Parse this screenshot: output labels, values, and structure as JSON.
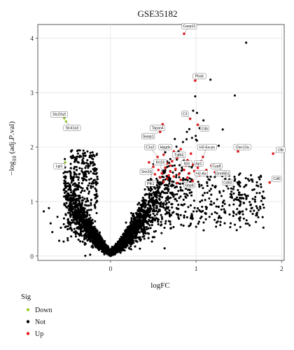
{
  "chart_data": {
    "type": "scatter",
    "title": "GSE35182",
    "xlabel": "logFC",
    "ylabel": "−log10 (adj.P.val)",
    "ylabel_parts": {
      "prefix": "−log",
      "sub": "10",
      "suffix": " (adj.",
      "italic": "P",
      "suffix2": ".val)"
    },
    "xlim": [
      -0.85,
      2.03
    ],
    "ylim": [
      -0.08,
      4.25
    ],
    "xticks": [
      0,
      1,
      2
    ],
    "yticks": [
      0,
      1,
      2,
      3,
      4
    ],
    "grid": true,
    "legend": {
      "title": "Sig",
      "position": "bottom-left",
      "entries": [
        {
          "name": "Down",
          "color": "#9acd32"
        },
        {
          "name": "Not",
          "color": "#000000"
        },
        {
          "name": "Up",
          "color": "#e41a1c"
        }
      ]
    },
    "series": [
      {
        "name": "Down",
        "color": "#9acd32",
        "points": [
          [
            -0.54,
            2.53
          ],
          [
            -0.52,
            2.47
          ],
          [
            -0.53,
            1.72
          ],
          [
            -0.56,
            1.62
          ]
        ]
      },
      {
        "name": "Up",
        "color": "#e41a1c",
        "points": [
          [
            0.86,
            4.08
          ],
          [
            0.99,
            3.22
          ],
          [
            0.93,
            2.52
          ],
          [
            1.02,
            2.41
          ],
          [
            0.61,
            2.42
          ],
          [
            0.58,
            2.28
          ],
          [
            1.49,
            1.92
          ],
          [
            1.9,
            1.88
          ],
          [
            1.86,
            1.35
          ],
          [
            0.55,
            1.82
          ],
          [
            0.62,
            1.86
          ],
          [
            0.66,
            1.7
          ],
          [
            0.72,
            1.74
          ],
          [
            0.78,
            1.8
          ],
          [
            0.84,
            1.86
          ],
          [
            0.9,
            1.76
          ],
          [
            0.96,
            1.68
          ],
          [
            1.02,
            1.62
          ],
          [
            1.06,
            1.74
          ],
          [
            0.45,
            1.72
          ],
          [
            0.5,
            1.64
          ],
          [
            0.56,
            1.58
          ],
          [
            0.6,
            1.52
          ],
          [
            0.64,
            1.62
          ],
          [
            0.7,
            1.55
          ],
          [
            0.76,
            1.6
          ],
          [
            0.8,
            1.5
          ],
          [
            0.86,
            1.58
          ],
          [
            0.92,
            1.52
          ],
          [
            0.98,
            1.56
          ],
          [
            0.52,
            1.5
          ],
          [
            0.58,
            1.44
          ],
          [
            0.66,
            1.42
          ],
          [
            0.74,
            1.46
          ],
          [
            0.82,
            1.4
          ],
          [
            0.9,
            1.44
          ],
          [
            0.96,
            1.38
          ],
          [
            1.04,
            1.48
          ],
          [
            0.48,
            1.56
          ],
          [
            0.7,
            1.66
          ],
          [
            0.88,
            1.66
          ],
          [
            1.0,
            1.72
          ],
          [
            0.62,
            1.36
          ],
          [
            0.78,
            1.34
          ],
          [
            1.12,
            1.58
          ],
          [
            1.18,
            1.66
          ],
          [
            1.22,
            1.54
          ],
          [
            1.28,
            1.62
          ],
          [
            1.34,
            1.5
          ],
          [
            0.74,
            1.92
          ],
          [
            0.82,
            1.96
          ],
          [
            0.94,
            1.88
          ],
          [
            1.08,
            1.82
          ],
          [
            0.68,
            1.48
          ]
        ]
      }
    ],
    "annotations": [
      {
        "label": "Casp12",
        "x": 0.86,
        "y": 4.08,
        "lx": 0.92,
        "ly": 4.22
      },
      {
        "label": "Plxdc",
        "x": 0.99,
        "y": 3.22,
        "lx": 1.04,
        "ly": 3.3
      },
      {
        "label": "Slc22a3",
        "x": -0.54,
        "y": 2.53,
        "lx": -0.6,
        "ly": 2.6
      },
      {
        "label": "Slc41a3",
        "x": -0.52,
        "y": 2.47,
        "lx": -0.45,
        "ly": 2.35
      },
      {
        "label": "C3",
        "x": 0.93,
        "y": 2.52,
        "lx": 0.87,
        "ly": 2.61
      },
      {
        "label": "C4b",
        "x": 1.02,
        "y": 2.41,
        "lx": 1.1,
        "ly": 2.34
      },
      {
        "label": "Tapan4",
        "x": 0.61,
        "y": 2.42,
        "lx": 0.55,
        "ly": 2.35
      },
      {
        "label": "Swap1",
        "x": 0.58,
        "y": 2.28,
        "lx": 0.44,
        "ly": 2.2
      },
      {
        "label": "C1s2",
        "x": 0.55,
        "y": 1.82,
        "lx": 0.46,
        "ly": 2.0
      },
      {
        "label": "Hpgds",
        "x": 0.62,
        "y": 1.86,
        "lx": 0.64,
        "ly": 2.0
      },
      {
        "label": "H2-Ea-ps",
        "x": 1.06,
        "y": 1.74,
        "lx": 1.13,
        "ly": 2.0
      },
      {
        "label": "Clec12a",
        "x": 1.49,
        "y": 1.92,
        "lx": 1.54,
        "ly": 2.0
      },
      {
        "label": "Cfb",
        "x": 1.9,
        "y": 1.88,
        "lx": 1.99,
        "ly": 1.95
      },
      {
        "label": "Tgfb2",
        "x": 0.72,
        "y": 1.74,
        "lx": 0.8,
        "ly": 1.86
      },
      {
        "label": "Krt18",
        "x": 0.6,
        "y": 1.52,
        "lx": 0.58,
        "ly": 1.72
      },
      {
        "label": "Il33",
        "x": 0.84,
        "y": 1.86,
        "lx": 0.89,
        "ly": 1.7
      },
      {
        "label": "Ap1",
        "x": 0.96,
        "y": 1.68,
        "lx": 1.03,
        "ly": 1.7
      },
      {
        "label": "Cyp8",
        "x": 1.18,
        "y": 1.66,
        "lx": 1.24,
        "ly": 1.65
      },
      {
        "label": "Snx10",
        "x": 0.5,
        "y": 1.64,
        "lx": 0.42,
        "ly": 1.55
      },
      {
        "label": "H2-Aa",
        "x": 0.96,
        "y": 1.38,
        "lx": 1.06,
        "ly": 1.52
      },
      {
        "label": "Gm4951",
        "x": 1.28,
        "y": 1.62,
        "lx": 1.31,
        "ly": 1.52
      },
      {
        "label": "Lgi1",
        "x": -0.53,
        "y": 1.72,
        "lx": -0.6,
        "ly": 1.65
      },
      {
        "label": "Cd52",
        "x": 1.34,
        "y": 1.5,
        "lx": 1.37,
        "ly": 1.35
      },
      {
        "label": "Ptk1",
        "x": 0.48,
        "y": 1.56,
        "lx": 0.47,
        "ly": 1.33
      },
      {
        "label": "Gbp8",
        "x": 0.82,
        "y": 1.4,
        "lx": 0.92,
        "ly": 1.3
      },
      {
        "label": "Cd8",
        "x": 1.86,
        "y": 1.35,
        "lx": 1.94,
        "ly": 1.42
      }
    ],
    "not_sig_description": "~5000 non-significant genes forming a volcano-shaped cloud centered near logFC 0"
  }
}
